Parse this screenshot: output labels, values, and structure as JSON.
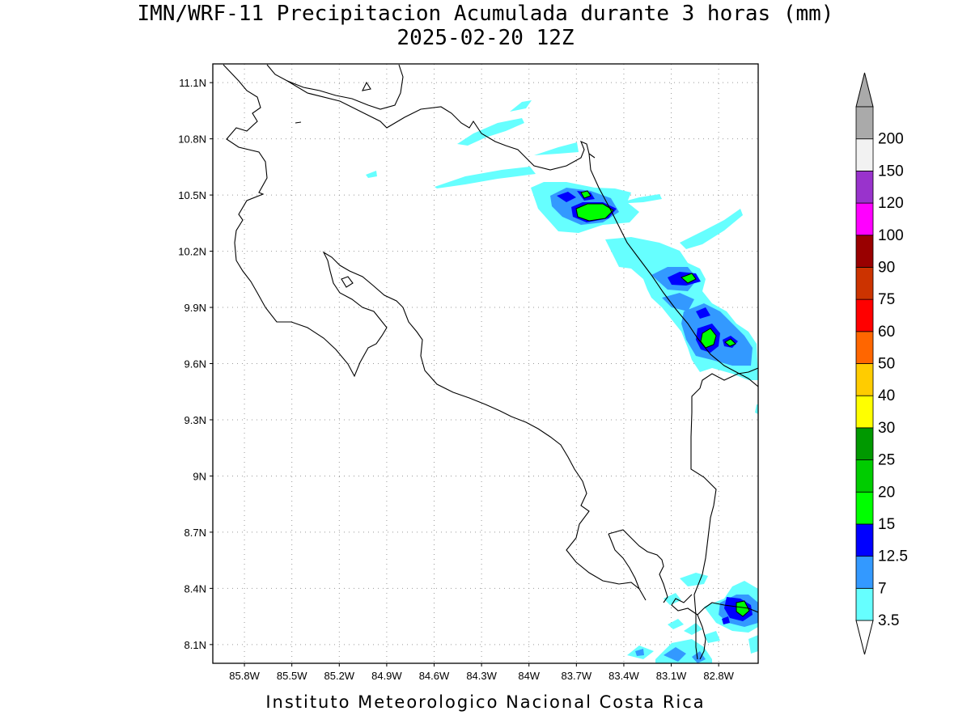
{
  "title": {
    "line1": "IMN/WRF-11 Precipitacion Acumulada durante 3 horas (mm)",
    "line2": "2025-02-20 12Z"
  },
  "footer": "Instituto Meteorologico Nacional Costa Rica",
  "map": {
    "lon_range": [
      -86.0,
      -82.55
    ],
    "lat_range": [
      8.0,
      11.2
    ],
    "lat_ticks": [
      {
        "value": 11.1,
        "label": "11.1N"
      },
      {
        "value": 10.8,
        "label": "10.8N"
      },
      {
        "value": 10.5,
        "label": "10.5N"
      },
      {
        "value": 10.2,
        "label": "10.2N"
      },
      {
        "value": 9.9,
        "label": "9.9N"
      },
      {
        "value": 9.6,
        "label": "9.6N"
      },
      {
        "value": 9.3,
        "label": "9.3N"
      },
      {
        "value": 9.0,
        "label": "9N"
      },
      {
        "value": 8.7,
        "label": "8.7N"
      },
      {
        "value": 8.4,
        "label": "8.4N"
      },
      {
        "value": 8.1,
        "label": "8.1N"
      }
    ],
    "lon_ticks": [
      {
        "value": -85.8,
        "label": "85.8W"
      },
      {
        "value": -85.5,
        "label": "85.5W"
      },
      {
        "value": -85.2,
        "label": "85.2W"
      },
      {
        "value": -84.9,
        "label": "84.9W"
      },
      {
        "value": -84.6,
        "label": "84.6W"
      },
      {
        "value": -84.3,
        "label": "84.3W"
      },
      {
        "value": -84.0,
        "label": "84W"
      },
      {
        "value": -83.7,
        "label": "83.7W"
      },
      {
        "value": -83.4,
        "label": "83.4W"
      },
      {
        "value": -83.1,
        "label": "83.1W"
      },
      {
        "value": -82.8,
        "label": "82.8W"
      }
    ],
    "grid": "dotted"
  },
  "colorbar": {
    "levels": [
      {
        "label": "3.5",
        "color": "#66ffff"
      },
      {
        "label": "7",
        "color": "#3399ff"
      },
      {
        "label": "12.5",
        "color": "#0000ff"
      },
      {
        "label": "15",
        "color": "#00ff00"
      },
      {
        "label": "20",
        "color": "#00cc00"
      },
      {
        "label": "25",
        "color": "#009900"
      },
      {
        "label": "30",
        "color": "#ffff00"
      },
      {
        "label": "40",
        "color": "#ffcc00"
      },
      {
        "label": "50",
        "color": "#ff6600"
      },
      {
        "label": "60",
        "color": "#ff0000"
      },
      {
        "label": "75",
        "color": "#cc3300"
      },
      {
        "label": "90",
        "color": "#990000"
      },
      {
        "label": "100",
        "color": "#ff00ff"
      },
      {
        "label": "120",
        "color": "#9933cc"
      },
      {
        "label": "150",
        "color": "#f2f2f2"
      },
      {
        "label": "200",
        "color": "#aaaaaa"
      }
    ],
    "below_min_color": "#ffffff",
    "above_max_color": "#aaaaaa"
  }
}
